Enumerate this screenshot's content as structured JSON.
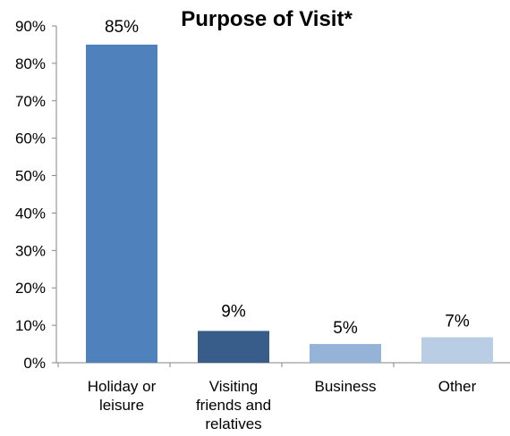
{
  "chart_data": {
    "type": "bar",
    "title": "Purpose of Visit*",
    "categories": [
      [
        "Holiday or",
        "leisure"
      ],
      [
        "Visiting",
        "friends and",
        "relatives"
      ],
      [
        "Business"
      ],
      [
        "Other"
      ]
    ],
    "values": [
      85,
      9,
      5,
      7
    ],
    "value_labels": [
      "85%",
      "9%",
      "5%",
      "7%"
    ],
    "actual_values": [
      85,
      8.5,
      5,
      6.8
    ],
    "colors": [
      "#4F81BD",
      "#385D8A",
      "#95B3D7",
      "#B9CDE5"
    ],
    "ylim": [
      0,
      90
    ],
    "yticks": [
      0,
      10,
      20,
      30,
      40,
      50,
      60,
      70,
      80,
      90
    ],
    "ytick_labels": [
      "0%",
      "10%",
      "20%",
      "30%",
      "40%",
      "50%",
      "60%",
      "70%",
      "80%",
      "90%"
    ],
    "grid": false,
    "xlabel": "",
    "ylabel": ""
  }
}
